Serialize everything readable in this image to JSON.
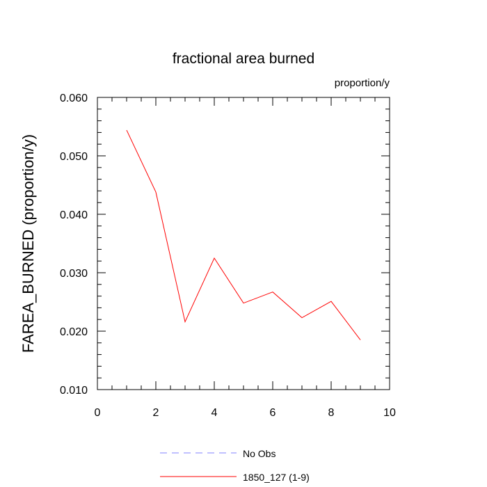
{
  "chart_data": {
    "type": "line",
    "title": "fractional area burned",
    "units_label": "proportion/y",
    "xlabel": "",
    "ylabel": "FAREA_BURNED  (proportion/y)",
    "xlim": [
      0,
      10
    ],
    "ylim": [
      0.01,
      0.06
    ],
    "x_ticks": [
      0,
      2,
      4,
      6,
      8,
      10
    ],
    "x_tick_labels": [
      "0",
      "2",
      "4",
      "6",
      "8",
      "10"
    ],
    "y_ticks": [
      0.01,
      0.02,
      0.03,
      0.04,
      0.05,
      0.06
    ],
    "y_tick_labels": [
      "0.010",
      "0.020",
      "0.030",
      "0.040",
      "0.050",
      "0.060"
    ],
    "grid": false,
    "legend_position": "bottom",
    "series": [
      {
        "name": "1850_127 (1-9)",
        "color": "#ff0000",
        "dash": "solid",
        "x": [
          1,
          2,
          3,
          4,
          5,
          6,
          7,
          8,
          9
        ],
        "y": [
          0.0544,
          0.0438,
          0.0216,
          0.0325,
          0.0248,
          0.0267,
          0.0223,
          0.0251,
          0.0185
        ]
      }
    ],
    "legend": [
      {
        "label": "No Obs",
        "color": "#8080ff",
        "dash": "dashed"
      },
      {
        "label": "1850_127 (1-9)",
        "color": "#ff0000",
        "dash": "solid"
      }
    ]
  }
}
